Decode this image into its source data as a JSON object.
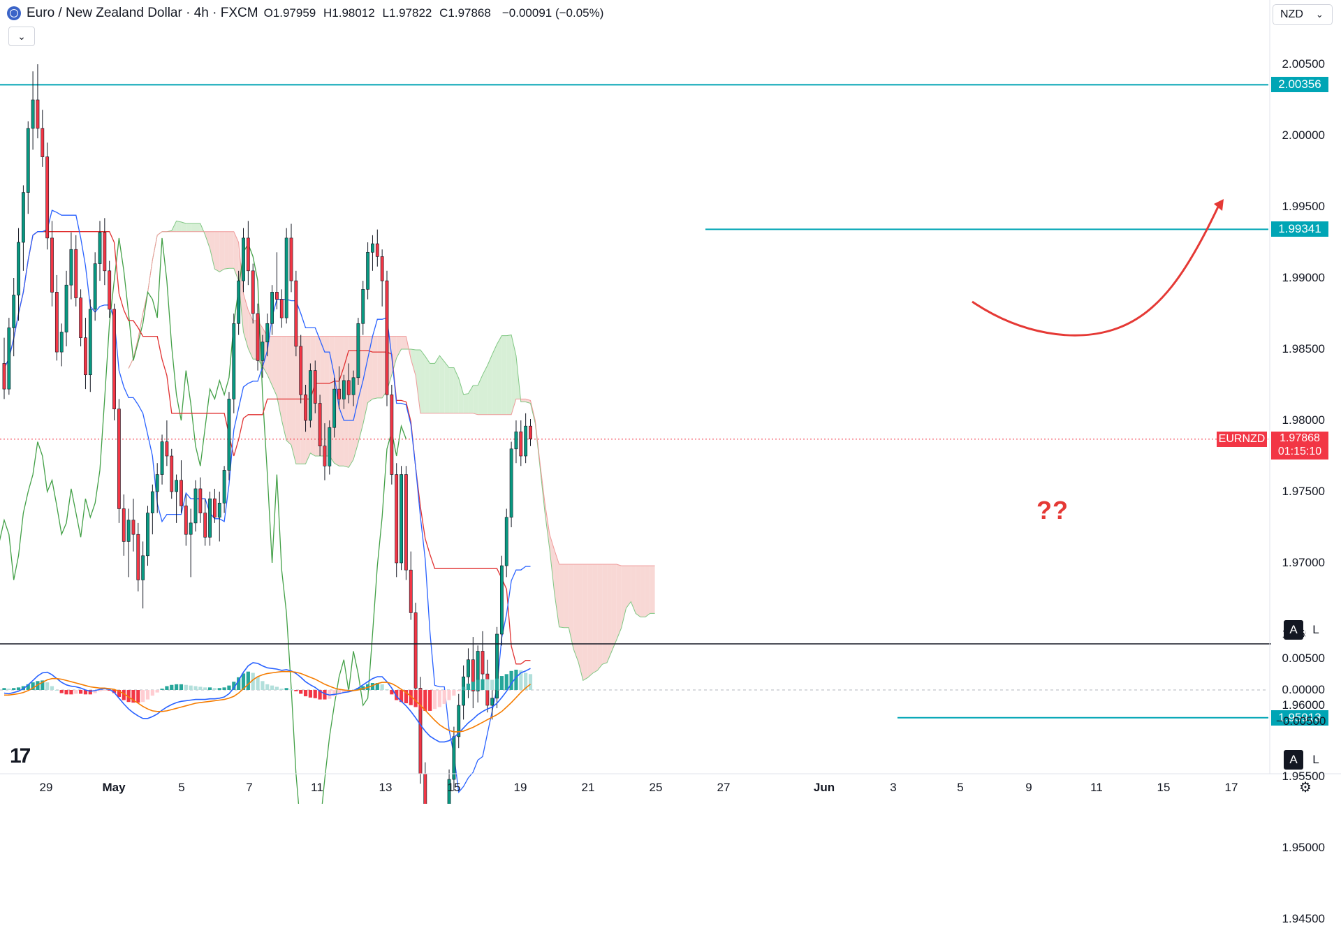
{
  "header": {
    "symbol_title": "Euro / New Zealand Dollar · 4h · FXCM",
    "open_label": "O",
    "open": "1.97959",
    "high_label": "H",
    "high": "1.98012",
    "low_label": "L",
    "low": "1.97822",
    "close_label": "C",
    "close": "1.97868",
    "change": "−0.00091 (−0.05%)",
    "collapse_icon": "chevron-down-icon"
  },
  "currency_selector": {
    "value": "NZD",
    "icon": "chevron-down-icon"
  },
  "price_axis": {
    "labels": [
      "2.00500",
      "2.00000",
      "1.99500",
      "1.99000",
      "1.98500",
      "1.98000",
      "1.97500",
      "1.97000",
      "1.96500",
      "1.96000",
      "1.95500",
      "1.95000",
      "1.94500"
    ]
  },
  "levels": [
    {
      "label": "2.00356",
      "value": 2.00356,
      "color": "#00a5b5"
    },
    {
      "label": "1.99341",
      "value": 1.99341,
      "color": "#00a5b5"
    },
    {
      "label": "1.95913",
      "value": 1.95913,
      "color": "#00a5b5"
    }
  ],
  "current_price": {
    "symbol": "EURNZD",
    "price": "1.97868",
    "countdown": "01:15:10",
    "color": "#f23645"
  },
  "macd_axis": {
    "labels": [
      "0.00500",
      "0.00000",
      "−0.00500"
    ]
  },
  "x_axis": {
    "labels": [
      {
        "text": "29",
        "bold": false
      },
      {
        "text": "May",
        "bold": true
      },
      {
        "text": "5",
        "bold": false
      },
      {
        "text": "7",
        "bold": false
      },
      {
        "text": "11",
        "bold": false
      },
      {
        "text": "13",
        "bold": false
      },
      {
        "text": "15",
        "bold": false
      },
      {
        "text": "19",
        "bold": false
      },
      {
        "text": "21",
        "bold": false
      },
      {
        "text": "25",
        "bold": false
      },
      {
        "text": "27",
        "bold": false
      },
      {
        "text": "Jun",
        "bold": true
      },
      {
        "text": "3",
        "bold": false
      },
      {
        "text": "5",
        "bold": false
      },
      {
        "text": "9",
        "bold": false
      },
      {
        "text": "11",
        "bold": false
      },
      {
        "text": "15",
        "bold": false
      },
      {
        "text": "17",
        "bold": false
      }
    ]
  },
  "annotation": {
    "text": "??",
    "color": "#e53935"
  },
  "scale_buttons": {
    "auto": "A",
    "log": "L"
  },
  "logo_text": "17",
  "colors": {
    "bull": "#089981",
    "bear": "#f23645",
    "tenkan": "#2962ff",
    "kijun": "#e03131",
    "chikou": "#43a047",
    "cloud_bear": "#f8d8d5",
    "cloud_bull": "#d7efd6",
    "macd": "#2962ff",
    "signal": "#f57c00"
  },
  "chart_data": {
    "type": "candlestick",
    "timeframe": "4h",
    "ylim": [
      1.9425,
      2.0075
    ],
    "macd_ylim": [
      -0.0082,
      0.0063
    ],
    "candles": [
      [
        1.984,
        1.9858,
        1.9815,
        1.9822
      ],
      [
        1.9822,
        1.9872,
        1.9818,
        1.9865
      ],
      [
        1.9865,
        1.99,
        1.9845,
        1.9888
      ],
      [
        1.9888,
        1.9935,
        1.987,
        1.9925
      ],
      [
        1.9925,
        1.9965,
        1.9905,
        1.996
      ],
      [
        1.996,
        2.001,
        1.9945,
        2.0005
      ],
      [
        2.0005,
        2.0045,
        1.999,
        2.0025
      ],
      [
        2.0025,
        2.005,
        1.9998,
        2.0005
      ],
      [
        2.0005,
        2.0018,
        1.9978,
        1.9985
      ],
      [
        1.9985,
        1.9995,
        1.992,
        1.9928
      ],
      [
        1.9928,
        1.994,
        1.988,
        1.989
      ],
      [
        1.989,
        1.9902,
        1.9842,
        1.9848
      ],
      [
        1.9848,
        1.9868,
        1.9838,
        1.9862
      ],
      [
        1.9862,
        1.9905,
        1.9852,
        1.9895
      ],
      [
        1.9895,
        1.9932,
        1.9885,
        1.992
      ],
      [
        1.992,
        1.993,
        1.988,
        1.9886
      ],
      [
        1.9886,
        1.9892,
        1.9852,
        1.9858
      ],
      [
        1.9858,
        1.9872,
        1.9822,
        1.9832
      ],
      [
        1.9832,
        1.9885,
        1.982,
        1.9878
      ],
      [
        1.9878,
        1.9918,
        1.987,
        1.991
      ],
      [
        1.991,
        1.994,
        1.9898,
        1.9932
      ],
      [
        1.9932,
        1.9942,
        1.9895,
        1.9905
      ],
      [
        1.9905,
        1.9912,
        1.9872,
        1.9878
      ],
      [
        1.9878,
        1.9882,
        1.98,
        1.9808
      ],
      [
        1.9808,
        1.9815,
        1.9728,
        1.9738
      ],
      [
        1.9738,
        1.9748,
        1.9705,
        1.9715
      ],
      [
        1.9715,
        1.9738,
        1.969,
        1.973
      ],
      [
        1.973,
        1.9745,
        1.9708,
        1.972
      ],
      [
        1.972,
        1.9728,
        1.968,
        1.9688
      ],
      [
        1.9688,
        1.9715,
        1.9668,
        1.9705
      ],
      [
        1.9705,
        1.974,
        1.9698,
        1.9735
      ],
      [
        1.9735,
        1.9755,
        1.972,
        1.975
      ],
      [
        1.975,
        1.977,
        1.9735,
        1.9762
      ],
      [
        1.9762,
        1.979,
        1.9755,
        1.9785
      ],
      [
        1.9785,
        1.98,
        1.9768,
        1.9775
      ],
      [
        1.9775,
        1.978,
        1.9745,
        1.975
      ],
      [
        1.975,
        1.9762,
        1.9728,
        1.9758
      ],
      [
        1.9758,
        1.9772,
        1.9735,
        1.974
      ],
      [
        1.974,
        1.9748,
        1.9712,
        1.972
      ],
      [
        1.972,
        1.9738,
        1.969,
        1.9728
      ],
      [
        1.9728,
        1.9758,
        1.9722,
        1.9752
      ],
      [
        1.9752,
        1.976,
        1.9728,
        1.9735
      ],
      [
        1.9735,
        1.9745,
        1.9712,
        1.9718
      ],
      [
        1.9718,
        1.975,
        1.9712,
        1.9745
      ],
      [
        1.9745,
        1.9752,
        1.9728,
        1.9732
      ],
      [
        1.9732,
        1.975,
        1.9715,
        1.9742
      ],
      [
        1.9742,
        1.9768,
        1.9735,
        1.9765
      ],
      [
        1.9765,
        1.982,
        1.9758,
        1.9815
      ],
      [
        1.9815,
        1.9875,
        1.9805,
        1.9868
      ],
      [
        1.9868,
        1.9905,
        1.986,
        1.9898
      ],
      [
        1.9898,
        1.9935,
        1.989,
        1.9928
      ],
      [
        1.9928,
        1.994,
        1.9895,
        1.9905
      ],
      [
        1.9905,
        1.991,
        1.9868,
        1.9875
      ],
      [
        1.9875,
        1.9882,
        1.9835,
        1.9842
      ],
      [
        1.9842,
        1.986,
        1.983,
        1.9855
      ],
      [
        1.9855,
        1.9875,
        1.9845,
        1.9868
      ],
      [
        1.9868,
        1.9895,
        1.986,
        1.989
      ],
      [
        1.989,
        1.9918,
        1.9878,
        1.9885
      ],
      [
        1.9885,
        1.9892,
        1.9865,
        1.9872
      ],
      [
        1.9872,
        1.9935,
        1.9868,
        1.9928
      ],
      [
        1.9928,
        1.9938,
        1.989,
        1.9898
      ],
      [
        1.9898,
        1.9905,
        1.9845,
        1.9852
      ],
      [
        1.9852,
        1.986,
        1.9812,
        1.9818
      ],
      [
        1.9818,
        1.9825,
        1.9792,
        1.98
      ],
      [
        1.98,
        1.984,
        1.9795,
        1.9835
      ],
      [
        1.9835,
        1.9842,
        1.9805,
        1.9812
      ],
      [
        1.9812,
        1.9818,
        1.9775,
        1.9782
      ],
      [
        1.9782,
        1.9798,
        1.9758,
        1.9768
      ],
      [
        1.9768,
        1.98,
        1.9762,
        1.9795
      ],
      [
        1.9795,
        1.983,
        1.9788,
        1.9822
      ],
      [
        1.9822,
        1.9838,
        1.9808,
        1.9815
      ],
      [
        1.9815,
        1.9832,
        1.9808,
        1.9828
      ],
      [
        1.9828,
        1.984,
        1.9812,
        1.9818
      ],
      [
        1.9818,
        1.9835,
        1.981,
        1.983
      ],
      [
        1.983,
        1.9872,
        1.9825,
        1.9868
      ],
      [
        1.9868,
        1.9898,
        1.986,
        1.9892
      ],
      [
        1.9892,
        1.9925,
        1.9885,
        1.9918
      ],
      [
        1.9918,
        1.993,
        1.9905,
        1.9924
      ],
      [
        1.9924,
        1.9934,
        1.9908,
        1.9915
      ],
      [
        1.9915,
        1.992,
        1.988,
        1.9898
      ],
      [
        1.9898,
        1.9905,
        1.981,
        1.9818
      ],
      [
        1.9818,
        1.9825,
        1.9755,
        1.9762
      ],
      [
        1.9762,
        1.977,
        1.969,
        1.97
      ],
      [
        1.97,
        1.9768,
        1.9695,
        1.9762
      ],
      [
        1.9762,
        1.9768,
        1.9688,
        1.9695
      ],
      [
        1.9695,
        1.9708,
        1.966,
        1.9665
      ],
      [
        1.9665,
        1.9672,
        1.96,
        1.9612
      ],
      [
        1.9612,
        1.962,
        1.9545,
        1.9552
      ],
      [
        1.9552,
        1.956,
        1.95,
        1.9512
      ],
      [
        1.9512,
        1.952,
        1.9478,
        1.9485
      ],
      [
        1.9485,
        1.9508,
        1.9458,
        1.9502
      ],
      [
        1.9502,
        1.951,
        1.9475,
        1.9482
      ],
      [
        1.9482,
        1.952,
        1.9476,
        1.9515
      ],
      [
        1.9515,
        1.9555,
        1.9508,
        1.9548
      ],
      [
        1.9548,
        1.9585,
        1.954,
        1.9578
      ],
      [
        1.9578,
        1.9608,
        1.957,
        1.96
      ],
      [
        1.96,
        1.9628,
        1.959,
        1.962
      ],
      [
        1.962,
        1.964,
        1.9605,
        1.9632
      ],
      [
        1.9632,
        1.9648,
        1.9598,
        1.961
      ],
      [
        1.961,
        1.9642,
        1.9602,
        1.9638
      ],
      [
        1.9638,
        1.9652,
        1.9615,
        1.9622
      ],
      [
        1.9622,
        1.9632,
        1.9595,
        1.96
      ],
      [
        1.96,
        1.9612,
        1.959,
        1.9605
      ],
      [
        1.9605,
        1.9655,
        1.9598,
        1.965
      ],
      [
        1.965,
        1.9705,
        1.9642,
        1.9698
      ],
      [
        1.9698,
        1.9738,
        1.969,
        1.9732
      ],
      [
        1.9732,
        1.9785,
        1.9725,
        1.978
      ],
      [
        1.978,
        1.98,
        1.977,
        1.9792
      ],
      [
        1.9792,
        1.98,
        1.9768,
        1.9775
      ],
      [
        1.9775,
        1.9805,
        1.977,
        1.9796
      ],
      [
        1.9796,
        1.9801,
        1.9782,
        1.9787
      ]
    ],
    "macd": [
      -0.0005,
      -0.0006,
      -0.0004,
      -0.0002,
      0.0002,
      0.0008,
      0.0015,
      0.0022,
      0.0027,
      0.0028,
      0.0024,
      0.0018,
      0.0012,
      0.0008,
      0.0006,
      0.0005,
      0.0003,
      0.0,
      -0.0002,
      -0.0001,
      0.0001,
      0.0002,
      0.0001,
      -0.0004,
      -0.0013,
      -0.0022,
      -0.003,
      -0.0036,
      -0.0041,
      -0.0045,
      -0.0045,
      -0.0042,
      -0.0038,
      -0.0032,
      -0.0027,
      -0.0023,
      -0.002,
      -0.0018,
      -0.0017,
      -0.0016,
      -0.0015,
      -0.0015,
      -0.0015,
      -0.0014,
      -0.0014,
      -0.0013,
      -0.0011,
      -0.0006,
      0.0003,
      0.0015,
      0.0028,
      0.0038,
      0.0043,
      0.0042,
      0.0038,
      0.0035,
      0.0034,
      0.0033,
      0.0031,
      0.0032,
      0.003,
      0.0026,
      0.002,
      0.0013,
      0.0008,
      0.0004,
      -0.0002,
      -0.0006,
      -0.0008,
      -0.0007,
      -0.0006,
      -0.0004,
      -0.0003,
      -0.0001,
      0.0003,
      0.0008,
      0.0013,
      0.0018,
      0.0021,
      0.0021,
      0.0013,
      0.0003,
      -0.001,
      -0.0018,
      -0.0025,
      -0.0034,
      -0.0044,
      -0.0055,
      -0.0065,
      -0.0073,
      -0.0078,
      -0.0082,
      -0.0082,
      -0.008,
      -0.0075,
      -0.0068,
      -0.006,
      -0.0052,
      -0.0046,
      -0.0039,
      -0.0034,
      -0.003,
      -0.0027,
      -0.0021,
      -0.0012,
      -0.0002,
      0.001,
      0.002,
      0.0027,
      0.003,
      0.0034
    ],
    "signal": [
      -0.0008,
      -0.0008,
      -0.0007,
      -0.0006,
      -0.0004,
      -0.0001,
      0.0003,
      0.0008,
      0.0012,
      0.0016,
      0.0018,
      0.0018,
      0.0017,
      0.0015,
      0.0013,
      0.0011,
      0.0009,
      0.0007,
      0.0005,
      0.0004,
      0.0003,
      0.0003,
      0.0002,
      0.0001,
      -0.0002,
      -0.0006,
      -0.0011,
      -0.0016,
      -0.0021,
      -0.0026,
      -0.003,
      -0.0033,
      -0.0034,
      -0.0034,
      -0.0033,
      -0.0031,
      -0.0029,
      -0.0027,
      -0.0025,
      -0.0023,
      -0.0021,
      -0.002,
      -0.0019,
      -0.0018,
      -0.0017,
      -0.0016,
      -0.0015,
      -0.0013,
      -0.001,
      -0.0005,
      0.0002,
      0.0009,
      0.0016,
      0.0021,
      0.0024,
      0.0026,
      0.0027,
      0.0028,
      0.0029,
      0.0029,
      0.0029,
      0.0028,
      0.0026,
      0.0023,
      0.002,
      0.0017,
      0.0013,
      0.0009,
      0.0006,
      0.0003,
      0.0001,
      0.0,
      -0.0001,
      -0.0001,
      0.0,
      0.0002,
      0.0004,
      0.0007,
      0.001,
      0.0012,
      0.0012,
      0.001,
      0.0006,
      0.0001,
      -0.0004,
      -0.001,
      -0.0017,
      -0.0024,
      -0.0032,
      -0.004,
      -0.0048,
      -0.0055,
      -0.006,
      -0.0064,
      -0.0066,
      -0.0066,
      -0.0065,
      -0.0062,
      -0.0059,
      -0.0055,
      -0.0051,
      -0.0047,
      -0.0043,
      -0.0039,
      -0.0034,
      -0.0027,
      -0.002,
      -0.0012,
      -0.0004,
      0.0003,
      0.0009
    ]
  }
}
